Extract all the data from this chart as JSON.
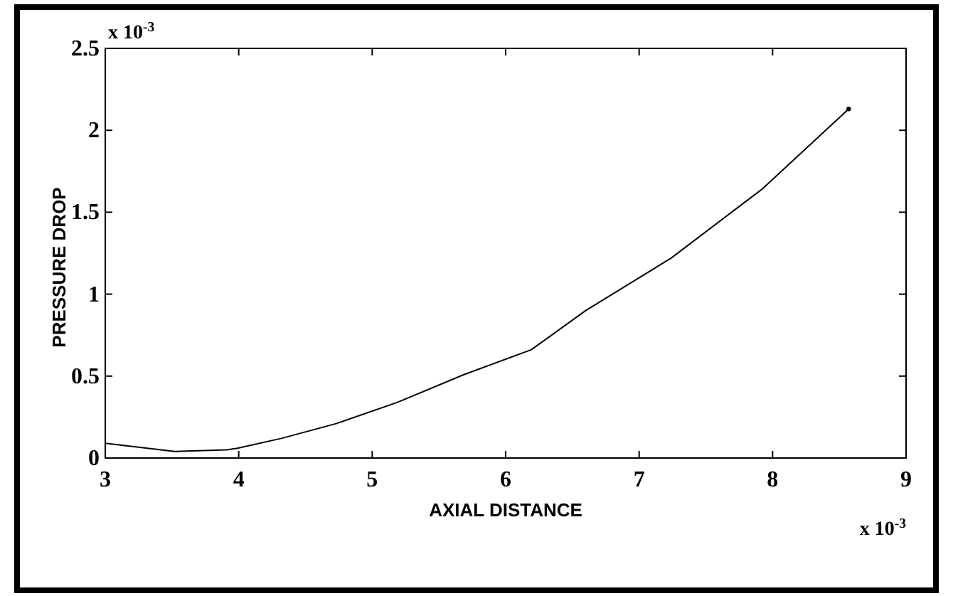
{
  "chart_data": {
    "type": "line",
    "xlabel": "AXIAL DISTANCE",
    "ylabel": "PRESSURE DROP",
    "annotations": [
      "x 10$^{-3}$",
      "x 10$^{-3}$"
    ],
    "xlim": [
      3,
      9
    ],
    "xticks": [
      3,
      4,
      5,
      6,
      7,
      8,
      9
    ],
    "ylim": [
      0,
      2.5
    ],
    "yticks": [
      0,
      0.5,
      1,
      1.5,
      2,
      2.5
    ],
    "grid": false,
    "marker": "none",
    "line_style": "solid",
    "series": [
      {
        "color": "#000000",
        "x": [
          3,
          3.52,
          3.91,
          3.99,
          4.32,
          4.73,
          5.19,
          5.69,
          6.19,
          6.6,
          7.24,
          7.92,
          8.57
        ],
        "values": [
          0.09,
          0.04,
          0.05,
          0.06,
          0.12,
          0.21,
          0.34,
          0.51,
          0.66,
          0.9,
          1.22,
          1.64,
          2.13
        ]
      },
      {
        "type": "scatter",
        "marker": "circle",
        "color": "#000000",
        "x": [
          8.57
        ],
        "values": [
          2.13
        ]
      }
    ]
  }
}
